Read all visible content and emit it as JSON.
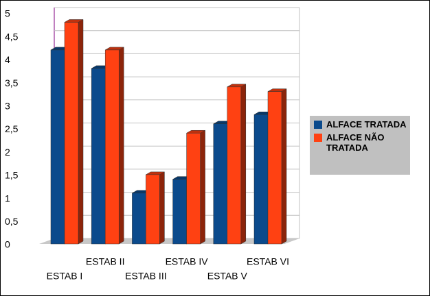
{
  "chart_data": {
    "type": "bar3d",
    "categories": [
      "ESTAB I",
      "ESTAB II",
      "ESTAB III",
      "ESTAB IV",
      "ESTAB V",
      "ESTAB VI"
    ],
    "series": [
      {
        "name": "ALFACE TRATADA",
        "color": "#0b4a8c",
        "values": [
          4.2,
          3.8,
          1.1,
          1.4,
          2.6,
          2.8
        ]
      },
      {
        "name": "ALFACE NÃO TRATADA",
        "color": "#ff4112",
        "values": [
          4.8,
          4.2,
          1.5,
          2.4,
          3.4,
          3.3
        ]
      }
    ],
    "ylim": [
      0,
      5
    ],
    "yticks": [
      0,
      {
        "value": 0.5,
        "label": "0,5"
      },
      1,
      {
        "value": 1.5,
        "label": "1,5"
      },
      2,
      {
        "value": 2.5,
        "label": "2,5"
      },
      3,
      {
        "value": 3.5,
        "label": "3,5"
      },
      4,
      {
        "value": 4.5,
        "label": "4,5"
      },
      5
    ],
    "grid": true,
    "legend": "right"
  }
}
